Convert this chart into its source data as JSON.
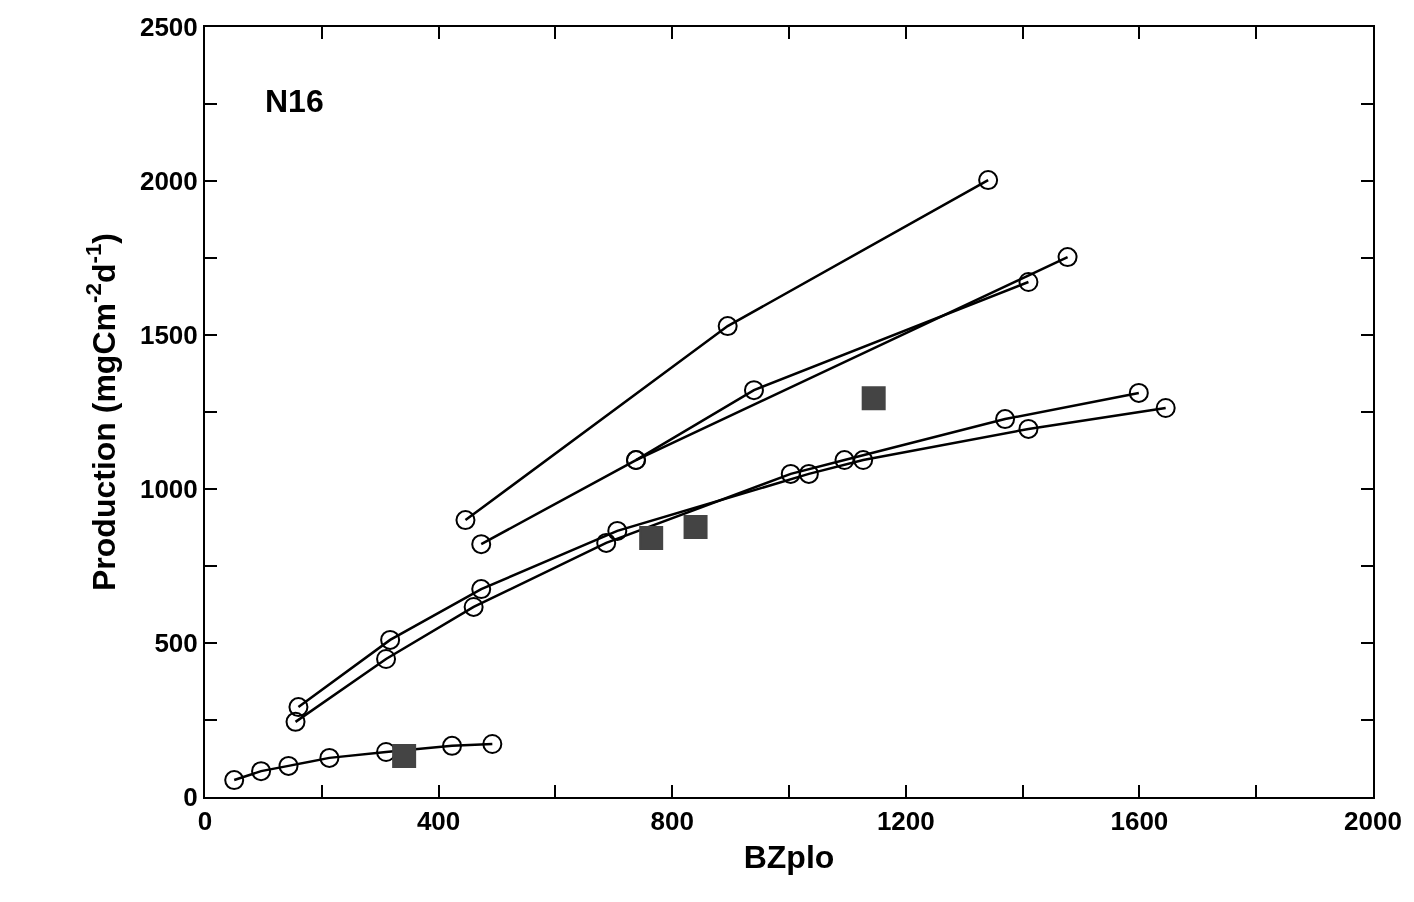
{
  "chart_data": {
    "type": "line",
    "xlabel": "BZplo",
    "ylabel": "Production (mgCm$^{-2}$d$^{-1}$)",
    "annotations": [
      "N16"
    ],
    "xlim": [
      0,
      2000
    ],
    "ylim": [
      0,
      2500
    ],
    "xticks": [
      0,
      {
        "value": 200,
        "label": null
      },
      400,
      {
        "value": 600,
        "label": null
      },
      800,
      {
        "value": 1000,
        "label": null
      },
      1200,
      {
        "value": 1400,
        "label": null
      },
      1600,
      {
        "value": 1800,
        "label": null
      },
      2000
    ],
    "yticks": [
      0,
      {
        "value": 250,
        "label": null
      },
      500,
      {
        "value": 750,
        "label": null
      },
      1000,
      {
        "value": 1250,
        "label": null
      },
      1500,
      {
        "value": 1750,
        "label": null
      },
      2000,
      {
        "value": 2250,
        "label": null
      },
      2500
    ],
    "marker": "circle",
    "line_style": "solid",
    "series": [
      {
        "color": "#000000",
        "x": [
          446,
          895,
          1341
        ],
        "values": [
          899,
          1529,
          2003
        ]
      },
      {
        "color": "#000000",
        "x": [
          473,
          738,
          940,
          1410
        ],
        "values": [
          821,
          1094,
          1321,
          1672
        ]
      },
      {
        "color": "#000000",
        "x": [
          738,
          1477
        ],
        "values": [
          1094,
          1753
        ]
      },
      {
        "color": "#000000",
        "x": [
          160,
          317,
          473,
          706,
          1034,
          1127,
          1410,
          1645
        ],
        "values": [
          292,
          510,
          675,
          864,
          1049,
          1094,
          1195,
          1263
        ]
      },
      {
        "color": "#000000",
        "x": [
          155,
          310,
          460,
          687,
          1003,
          1095,
          1370,
          1599
        ],
        "values": [
          244,
          448,
          617,
          825,
          1049,
          1094,
          1227,
          1312
        ]
      },
      {
        "color": "#000000",
        "x": [
          50,
          96,
          143,
          213,
          310,
          423,
          492
        ],
        "values": [
          55,
          84,
          101,
          127,
          146,
          166,
          172
        ]
      },
      {
        "type": "scatter",
        "marker": "square",
        "color": "#444444",
        "x": [
          341,
          764,
          840,
          1145
        ],
        "values": [
          133,
          841,
          877,
          1295
        ]
      }
    ]
  }
}
